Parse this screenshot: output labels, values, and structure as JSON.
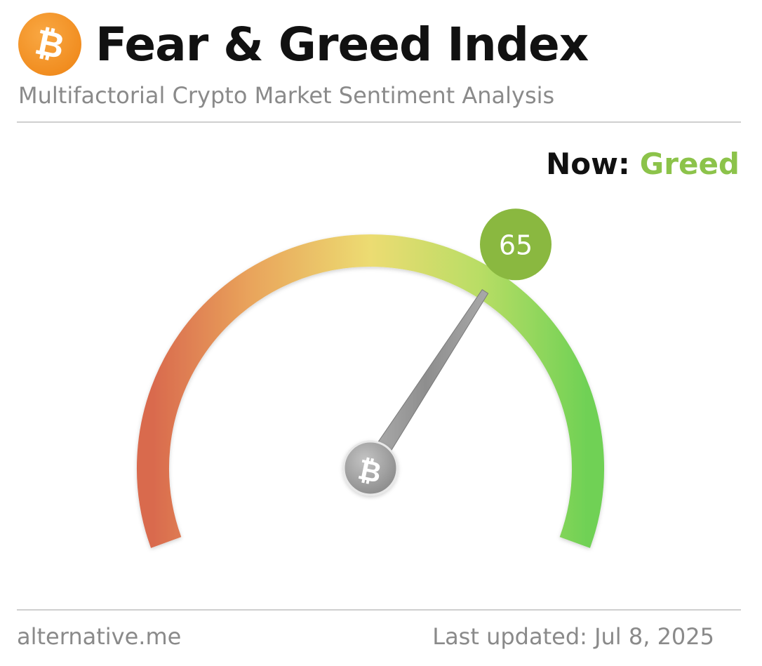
{
  "header": {
    "title": "Fear & Greed Index",
    "subtitle": "Multifactorial Crypto Market Sentiment Analysis",
    "logo_icon": "bitcoin-icon"
  },
  "status": {
    "now_label": "Now:",
    "now_value": "Greed"
  },
  "gauge": {
    "value": 65,
    "value_text": "65",
    "min": 0,
    "max": 100,
    "colors": {
      "fear": "#dc6b50",
      "neutral": "#ecd66e",
      "greed": "#7bd65a",
      "badge": "#8ab840",
      "needle": "#9a9a9a"
    }
  },
  "footer": {
    "source": "alternative.me",
    "last_updated": "Last updated: Jul 8, 2025"
  }
}
